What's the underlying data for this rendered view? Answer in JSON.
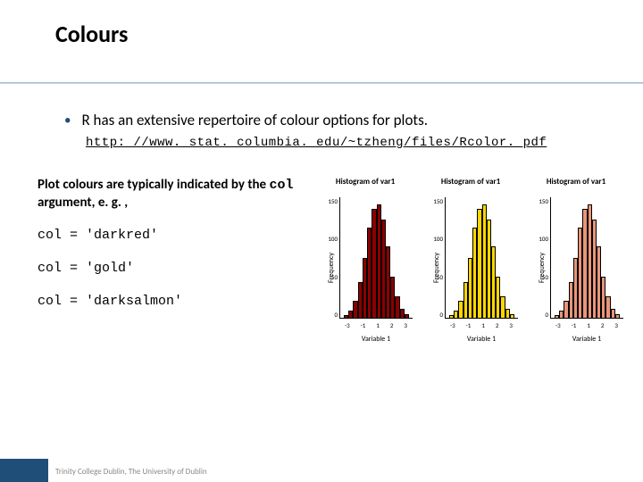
{
  "title": "Colours",
  "bullet": "R has an extensive repertoire of colour options for plots.",
  "url": "http: //www. stat. columbia. edu/~tzheng/files/Rcolor. pdf",
  "intro_prefix": "Plot colours are typically indicated by the ",
  "intro_code": "col",
  "intro_suffix": " argument, e. g. ,",
  "code_lines": [
    "col = 'darkred'",
    "col = 'gold'",
    "col = 'darksalmon'"
  ],
  "charts": [
    {
      "title": "Histogram of var1",
      "ylabel": "Frequency",
      "xlabel": "Variable 1",
      "color": "#8b0000",
      "yticks": [
        "150",
        "100",
        "50",
        "0"
      ],
      "xticks": [
        "-3",
        "-1",
        "1",
        "2",
        "3"
      ],
      "bars": [
        4,
        10,
        22,
        48,
        80,
        120,
        145,
        150,
        130,
        95,
        55,
        28,
        12,
        5
      ]
    },
    {
      "title": "Histogram of var1",
      "ylabel": "Frequency",
      "xlabel": "Variable 1",
      "color": "#ffd700",
      "yticks": [
        "150",
        "100",
        "50",
        "0"
      ],
      "xticks": [
        "-3",
        "-1",
        "1",
        "2",
        "3"
      ],
      "bars": [
        4,
        10,
        22,
        48,
        80,
        120,
        145,
        150,
        130,
        95,
        55,
        28,
        12,
        5
      ]
    },
    {
      "title": "Histogram of var1",
      "ylabel": "Frequency",
      "xlabel": "Variable 1",
      "color": "#e9967a",
      "yticks": [
        "150",
        "100",
        "50",
        "0"
      ],
      "xticks": [
        "-3",
        "-1",
        "1",
        "2",
        "3"
      ],
      "bars": [
        4,
        10,
        22,
        48,
        80,
        120,
        145,
        150,
        130,
        95,
        55,
        28,
        12,
        5
      ]
    }
  ],
  "chart_ymax": 160,
  "footer": "Trinity College Dublin, The University of Dublin"
}
